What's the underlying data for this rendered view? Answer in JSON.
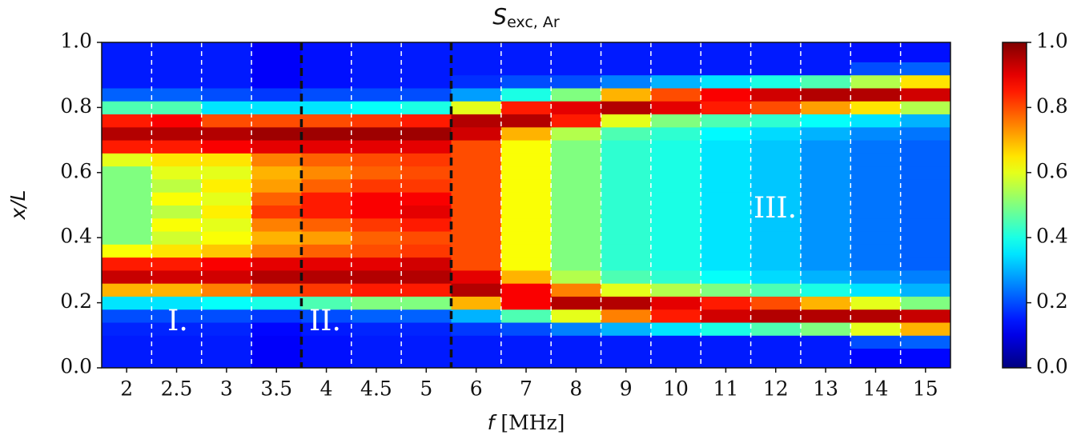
{
  "chart_data": {
    "type": "heatmap",
    "title": "S",
    "title_subscript": "exc, Ar",
    "xlabel_symbol": "f",
    "xlabel_unit": "[MHz]",
    "ylabel": "x/L",
    "categories": [
      "2",
      "2.5",
      "3",
      "3.5",
      "4",
      "4.5",
      "5",
      "6",
      "7",
      "8",
      "9",
      "10",
      "11",
      "12",
      "13",
      "14",
      "15"
    ],
    "y": [
      0,
      0.04,
      0.08,
      0.12,
      0.16,
      0.2,
      0.24,
      0.28,
      0.32,
      0.36,
      0.4,
      0.44,
      0.48,
      0.52,
      0.56,
      0.6,
      0.64,
      0.68,
      0.72,
      0.76,
      0.8,
      0.84,
      0.88,
      0.92,
      0.96,
      1.0
    ],
    "values": [
      [
        0.15,
        0.15,
        0.15,
        0.16,
        0.2,
        0.35,
        0.7,
        0.93,
        0.85,
        0.62,
        0.5,
        0.5,
        0.5,
        0.5,
        0.5,
        0.5,
        0.6,
        0.85,
        0.95,
        0.85,
        0.45,
        0.22,
        0.15,
        0.15,
        0.15,
        0.15
      ],
      [
        0.15,
        0.15,
        0.15,
        0.16,
        0.2,
        0.35,
        0.7,
        0.92,
        0.85,
        0.65,
        0.58,
        0.62,
        0.56,
        0.62,
        0.56,
        0.6,
        0.65,
        0.85,
        0.95,
        0.88,
        0.45,
        0.22,
        0.15,
        0.15,
        0.15,
        0.15
      ],
      [
        0.15,
        0.15,
        0.15,
        0.16,
        0.2,
        0.38,
        0.75,
        0.92,
        0.88,
        0.68,
        0.62,
        0.6,
        0.64,
        0.6,
        0.64,
        0.6,
        0.65,
        0.88,
        0.95,
        0.8,
        0.35,
        0.2,
        0.15,
        0.15,
        0.15,
        0.15
      ],
      [
        0.12,
        0.12,
        0.12,
        0.13,
        0.18,
        0.4,
        0.8,
        0.95,
        0.9,
        0.75,
        0.7,
        0.75,
        0.82,
        0.78,
        0.72,
        0.7,
        0.75,
        0.9,
        0.97,
        0.8,
        0.35,
        0.18,
        0.12,
        0.12,
        0.12,
        0.12
      ],
      [
        0.14,
        0.14,
        0.14,
        0.15,
        0.2,
        0.45,
        0.82,
        0.95,
        0.9,
        0.78,
        0.72,
        0.78,
        0.85,
        0.85,
        0.78,
        0.74,
        0.78,
        0.9,
        0.97,
        0.8,
        0.35,
        0.2,
        0.14,
        0.14,
        0.14,
        0.14
      ],
      [
        0.15,
        0.15,
        0.15,
        0.16,
        0.22,
        0.5,
        0.85,
        0.95,
        0.9,
        0.8,
        0.78,
        0.82,
        0.88,
        0.88,
        0.82,
        0.78,
        0.8,
        0.9,
        0.97,
        0.82,
        0.38,
        0.2,
        0.15,
        0.15,
        0.15,
        0.15
      ],
      [
        0.15,
        0.15,
        0.15,
        0.16,
        0.22,
        0.5,
        0.85,
        0.95,
        0.92,
        0.82,
        0.8,
        0.85,
        0.9,
        0.88,
        0.82,
        0.8,
        0.82,
        0.9,
        0.97,
        0.85,
        0.4,
        0.2,
        0.15,
        0.15,
        0.15,
        0.15
      ],
      [
        0.15,
        0.15,
        0.15,
        0.18,
        0.3,
        0.7,
        0.95,
        0.9,
        0.8,
        0.8,
        0.8,
        0.8,
        0.8,
        0.8,
        0.8,
        0.8,
        0.8,
        0.8,
        0.92,
        0.95,
        0.6,
        0.28,
        0.17,
        0.15,
        0.15,
        0.15
      ],
      [
        0.15,
        0.15,
        0.15,
        0.2,
        0.45,
        0.88,
        0.88,
        0.7,
        0.62,
        0.62,
        0.62,
        0.62,
        0.62,
        0.62,
        0.62,
        0.62,
        0.62,
        0.62,
        0.7,
        0.95,
        0.85,
        0.4,
        0.2,
        0.15,
        0.15,
        0.15
      ],
      [
        0.15,
        0.15,
        0.15,
        0.25,
        0.6,
        0.95,
        0.75,
        0.55,
        0.5,
        0.5,
        0.5,
        0.5,
        0.5,
        0.5,
        0.5,
        0.5,
        0.5,
        0.5,
        0.55,
        0.85,
        0.9,
        0.5,
        0.2,
        0.15,
        0.15,
        0.15
      ],
      [
        0.15,
        0.15,
        0.15,
        0.3,
        0.75,
        0.95,
        0.6,
        0.45,
        0.42,
        0.42,
        0.42,
        0.42,
        0.42,
        0.42,
        0.42,
        0.42,
        0.42,
        0.42,
        0.45,
        0.6,
        0.95,
        0.7,
        0.25,
        0.15,
        0.15,
        0.15
      ],
      [
        0.15,
        0.15,
        0.15,
        0.35,
        0.85,
        0.9,
        0.55,
        0.42,
        0.4,
        0.4,
        0.4,
        0.4,
        0.4,
        0.4,
        0.4,
        0.4,
        0.4,
        0.4,
        0.42,
        0.5,
        0.9,
        0.8,
        0.3,
        0.15,
        0.15,
        0.15
      ],
      [
        0.15,
        0.15,
        0.15,
        0.4,
        0.92,
        0.85,
        0.5,
        0.38,
        0.35,
        0.35,
        0.35,
        0.35,
        0.35,
        0.35,
        0.35,
        0.35,
        0.35,
        0.35,
        0.37,
        0.45,
        0.85,
        0.88,
        0.35,
        0.15,
        0.15,
        0.15
      ],
      [
        0.15,
        0.15,
        0.15,
        0.45,
        0.95,
        0.8,
        0.45,
        0.34,
        0.32,
        0.32,
        0.32,
        0.32,
        0.32,
        0.32,
        0.32,
        0.32,
        0.32,
        0.32,
        0.34,
        0.42,
        0.8,
        0.92,
        0.4,
        0.15,
        0.15,
        0.15
      ],
      [
        0.15,
        0.15,
        0.15,
        0.5,
        0.95,
        0.7,
        0.4,
        0.3,
        0.27,
        0.27,
        0.27,
        0.27,
        0.27,
        0.27,
        0.27,
        0.27,
        0.27,
        0.27,
        0.3,
        0.38,
        0.72,
        0.95,
        0.45,
        0.15,
        0.15,
        0.15
      ],
      [
        0.13,
        0.13,
        0.2,
        0.6,
        0.95,
        0.6,
        0.35,
        0.27,
        0.24,
        0.24,
        0.24,
        0.24,
        0.24,
        0.24,
        0.24,
        0.24,
        0.24,
        0.24,
        0.26,
        0.35,
        0.65,
        0.95,
        0.55,
        0.2,
        0.14,
        0.14
      ],
      [
        0.13,
        0.13,
        0.22,
        0.7,
        0.93,
        0.5,
        0.3,
        0.25,
        0.22,
        0.22,
        0.22,
        0.22,
        0.22,
        0.22,
        0.22,
        0.22,
        0.22,
        0.22,
        0.24,
        0.3,
        0.55,
        0.92,
        0.65,
        0.22,
        0.14,
        0.14
      ]
    ],
    "colormap": "jet",
    "ylim": [
      0,
      1
    ],
    "yticks": [
      {
        "value": 0,
        "label": "0.0"
      },
      {
        "value": 0.2,
        "label": "0.2"
      },
      {
        "value": 0.4,
        "label": "0.4"
      },
      {
        "value": 0.6,
        "label": "0.6"
      },
      {
        "value": 0.8,
        "label": "0.8"
      },
      {
        "value": 1,
        "label": "1.0"
      }
    ],
    "clim": [
      0,
      1
    ],
    "cticks": [
      {
        "value": 0,
        "label": "0.0"
      },
      {
        "value": 0.2,
        "label": "0.2"
      },
      {
        "value": 0.4,
        "label": "0.4"
      },
      {
        "value": 0.6,
        "label": "0.6"
      },
      {
        "value": 0.8,
        "label": "0.8"
      },
      {
        "value": 1,
        "label": "1.0"
      }
    ],
    "annotations": [
      "I.",
      "II.",
      "III."
    ]
  }
}
